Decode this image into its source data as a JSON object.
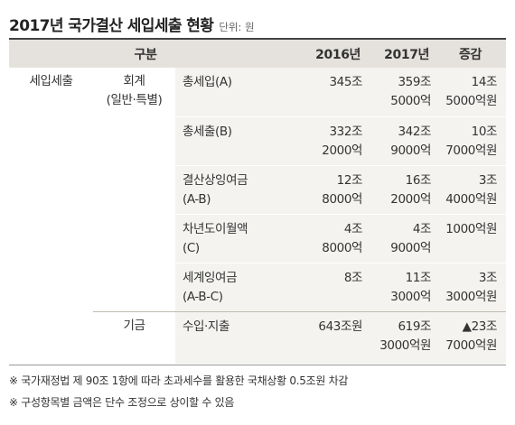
{
  "title": "2017년 국가결산 세입세출 현황",
  "unit": "단위: 원",
  "headers": {
    "category": "구분",
    "y2016": "2016년",
    "y2017": "2017년",
    "diff": "증감"
  },
  "group": {
    "revenue_expense": "세입세출",
    "account_line1": "회계",
    "account_line2": "(일반·특별)",
    "fund": "기금"
  },
  "rows": [
    {
      "item": [
        "총세입(A)",
        ""
      ],
      "y2016": [
        "345조",
        ""
      ],
      "y2017": [
        "359조",
        "5000억"
      ],
      "diff": [
        "14조",
        "5000억원"
      ]
    },
    {
      "item": [
        "총세출(B)",
        ""
      ],
      "y2016": [
        "332조",
        "2000억"
      ],
      "y2017": [
        "342조",
        "9000억"
      ],
      "diff": [
        "10조",
        "7000억원"
      ]
    },
    {
      "item": [
        "결산상잉여금",
        "(A-B)"
      ],
      "y2016": [
        "12조",
        "8000억"
      ],
      "y2017": [
        "16조",
        "2000억"
      ],
      "diff": [
        "3조",
        "4000억원"
      ]
    },
    {
      "item": [
        "차년도이월액",
        "(C)"
      ],
      "y2016": [
        "4조",
        "8000억"
      ],
      "y2017": [
        "4조",
        "9000억"
      ],
      "diff": [
        "1000억원",
        ""
      ]
    },
    {
      "item": [
        "세계잉여금",
        "(A-B-C)"
      ],
      "y2016": [
        "8조",
        ""
      ],
      "y2017": [
        "11조",
        "3000억"
      ],
      "diff": [
        "3조",
        "3000억원"
      ]
    },
    {
      "item": [
        "수입·지출",
        ""
      ],
      "y2016": [
        "643조원",
        ""
      ],
      "y2017": [
        "619조",
        "3000억원"
      ],
      "diff": [
        "▲23조",
        "7000억원"
      ]
    }
  ],
  "notes": [
    "※ 국가재정법 제 90조 1항에 따라 초과세수를 활용한 국채상황 0.5조원 차감",
    "※ 구성항목별 금액은 단수 조정으로 상이할 수 있음"
  ]
}
